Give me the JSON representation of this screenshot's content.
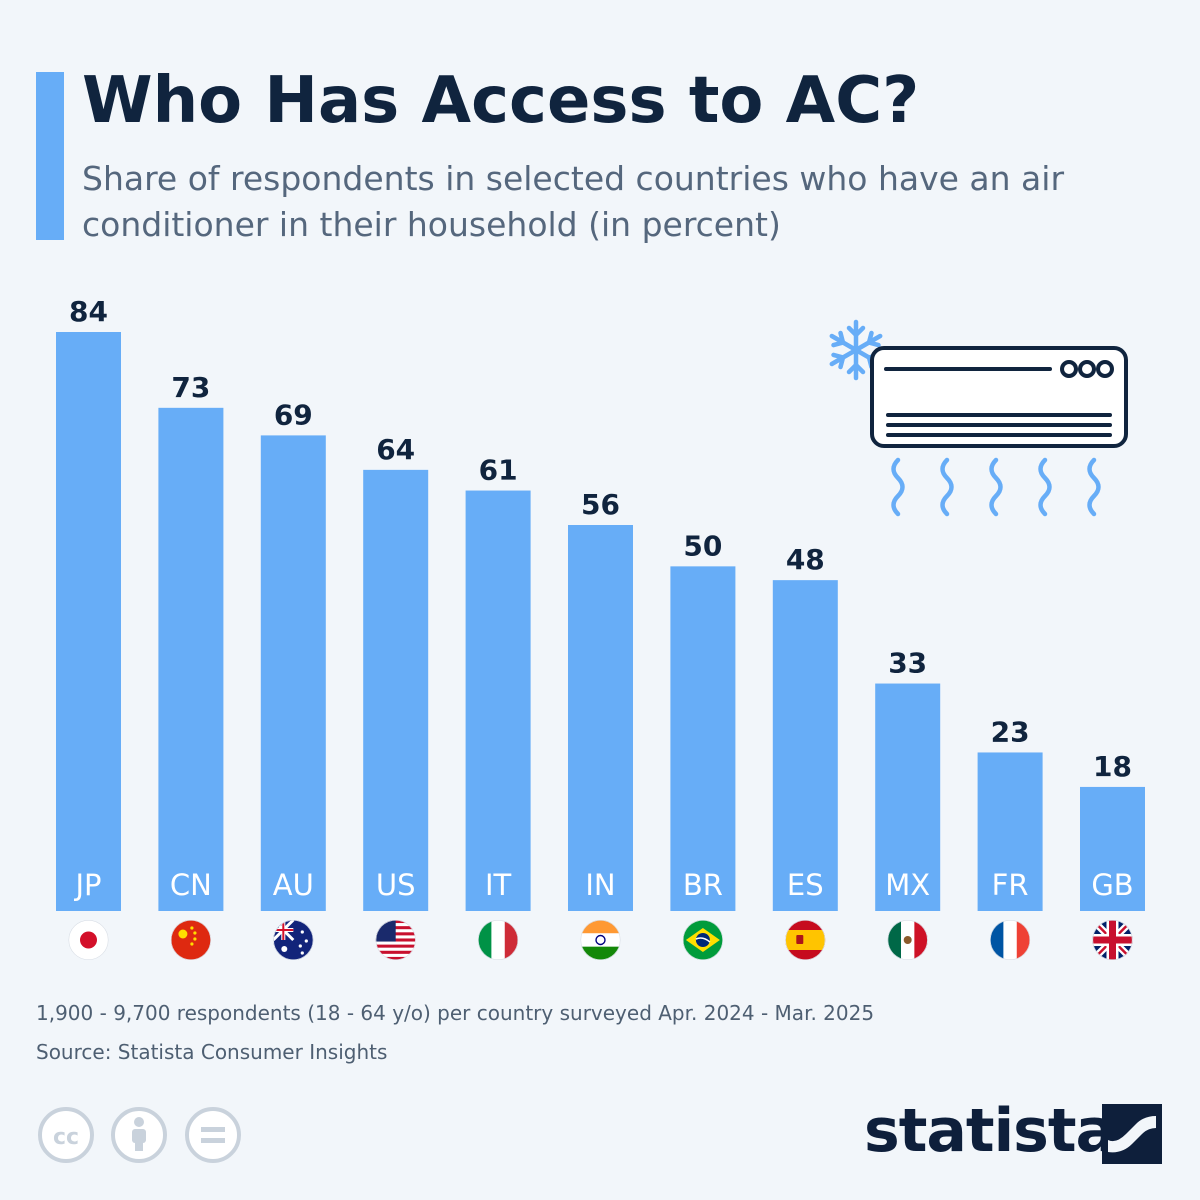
{
  "header": {
    "title": "Who Has Access to AC?",
    "subtitle": "Share of respondents in selected countries who have an air conditioner in their household (in percent)"
  },
  "chart_data": {
    "type": "bar",
    "title": "Who Has Access to AC?",
    "subtitle": "Share of respondents in selected countries who have an air conditioner in their household (in percent)",
    "categories": [
      "JP",
      "CN",
      "AU",
      "US",
      "IT",
      "IN",
      "BR",
      "ES",
      "MX",
      "FR",
      "GB"
    ],
    "values": [
      84,
      73,
      69,
      64,
      61,
      56,
      50,
      48,
      33,
      23,
      18
    ],
    "ylim": [
      0,
      84
    ],
    "grid": false,
    "legend": "none",
    "data_labels": true,
    "flags": [
      "flag-japan-icon",
      "flag-china-icon",
      "flag-australia-icon",
      "flag-usa-icon",
      "flag-italy-icon",
      "flag-india-icon",
      "flag-brazil-icon",
      "flag-spain-icon",
      "flag-mexico-icon",
      "flag-france-icon",
      "flag-uk-icon"
    ]
  },
  "colors": {
    "bar": "#67adf7",
    "accent": "#67adf7",
    "title": "#10243e",
    "subtitle": "#55677d",
    "background": "#f2f6fa",
    "value_label": "#10243e",
    "category_label": "#ffffff"
  },
  "footer": {
    "note": "1,900 - 9,700 respondents (18 - 64 y/o) per country surveyed Apr. 2024 - Mar. 2025",
    "source": "Source: Statista Consumer Insights",
    "license_icons": [
      "cc-icon",
      "attribution-icon",
      "no-derivatives-icon"
    ],
    "brand": "statista",
    "brand_icon": "statista-logo-icon"
  },
  "illustration": {
    "icons": [
      "snowflake-icon",
      "air-conditioner-icon",
      "airflow-icon"
    ]
  }
}
